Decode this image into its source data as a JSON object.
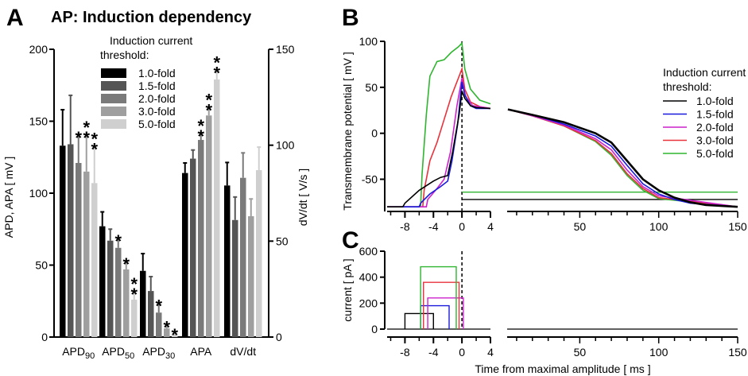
{
  "panels": {
    "a": {
      "letter": "A",
      "title": "AP: Induction dependency"
    },
    "b": {
      "letter": "B"
    },
    "c": {
      "letter": "C"
    }
  },
  "legend": {
    "title_a": "Induction current",
    "title_b": "threshold:",
    "entries": [
      "1.0-fold",
      "1.5-fold",
      "2.0-fold",
      "3.0-fold",
      "5.0-fold"
    ]
  },
  "colors": {
    "bar_series": [
      "#000000",
      "#555555",
      "#7a7a7a",
      "#9f9f9f",
      "#cfcfcf"
    ],
    "trace_series": [
      "#000000",
      "#1a1adc",
      "#cc22cc",
      "#e8323c",
      "#2fb52f"
    ]
  },
  "chart_data": [
    {
      "id": "A",
      "type": "bar",
      "title": "AP: Induction dependency",
      "categories": [
        "APD90",
        "APD50",
        "APD30",
        "APA",
        "dV/dt"
      ],
      "category_labels": [
        {
          "main": "APD",
          "sub": "90"
        },
        {
          "main": "APD",
          "sub": "50"
        },
        {
          "main": "APD",
          "sub": "30"
        },
        {
          "main": "APA",
          "sub": ""
        },
        {
          "main": "dV/dt",
          "sub": ""
        }
      ],
      "ylabel": "APD, APA [ mV ]",
      "ylim": [
        0,
        200
      ],
      "yticks": [
        0,
        50,
        100,
        150,
        200
      ],
      "y2label": "dV/dt [ V/s ]",
      "y2lim": [
        0,
        150
      ],
      "y2ticks": [
        0,
        50,
        100,
        150
      ],
      "series": [
        {
          "name": "1.0-fold",
          "values": [
            133,
            77,
            46,
            114,
            79
          ],
          "errors": [
            25,
            10,
            12,
            7,
            12
          ]
        },
        {
          "name": "1.5-fold",
          "values": [
            134,
            67,
            32,
            124,
            61
          ],
          "errors": [
            34,
            8,
            10,
            6,
            12
          ]
        },
        {
          "name": "2.0-fold",
          "values": [
            121,
            62,
            17,
            137,
            83
          ],
          "errors": [
            20,
            7,
            7,
            5,
            13
          ]
        },
        {
          "name": "3.0-fold",
          "values": [
            115,
            47,
            6,
            154,
            63
          ],
          "errors": [
            26,
            6,
            3,
            6,
            9
          ]
        },
        {
          "name": "5.0-fold",
          "values": [
            107,
            26,
            2,
            179,
            87
          ],
          "errors": [
            26,
            6,
            2,
            7,
            12
          ]
        }
      ],
      "significance": [
        {
          "category": 0,
          "series": 2,
          "mark": "*"
        },
        {
          "category": 0,
          "series": 3,
          "mark": "**"
        },
        {
          "category": 0,
          "series": 4,
          "mark": "**"
        },
        {
          "category": 1,
          "series": 2,
          "mark": "*"
        },
        {
          "category": 1,
          "series": 3,
          "mark": "*"
        },
        {
          "category": 1,
          "series": 4,
          "mark": "**"
        },
        {
          "category": 2,
          "series": 2,
          "mark": "*"
        },
        {
          "category": 2,
          "series": 3,
          "mark": "*"
        },
        {
          "category": 2,
          "series": 4,
          "mark": "*"
        },
        {
          "category": 3,
          "series": 2,
          "mark": "**"
        },
        {
          "category": 3,
          "series": 3,
          "mark": "**"
        },
        {
          "category": 3,
          "series": 4,
          "mark": "**"
        }
      ]
    },
    {
      "id": "B",
      "type": "line",
      "ylabel": "Transmembrane potential [ mV ]",
      "ylim": [
        -85,
        100
      ],
      "yticks": [
        -50,
        0,
        50,
        100
      ],
      "x_segments": [
        [
          -10,
          4
        ],
        [
          4,
          150
        ]
      ],
      "xticks_left": [
        -8,
        -4,
        0,
        4
      ],
      "xticks_right": [
        50,
        100,
        150
      ],
      "series": [
        {
          "name": "1.0-fold",
          "points": [
            [
              -10.5,
              -80
            ],
            [
              -8.3,
              -80
            ],
            [
              -8,
              -76
            ],
            [
              -6,
              -62
            ],
            [
              -4,
              -52
            ],
            [
              -3,
              -48
            ],
            [
              -2,
              -46
            ],
            [
              -1.3,
              -20
            ],
            [
              -0.4,
              20
            ],
            [
              0,
              46
            ],
            [
              0.4,
              38
            ],
            [
              1.2,
              30
            ],
            [
              2,
              28
            ],
            [
              4,
              27
            ],
            [
              4.5,
              26
            ],
            [
              20,
              20
            ],
            [
              40,
              12
            ],
            [
              60,
              0
            ],
            [
              70,
              -10
            ],
            [
              80,
              -30
            ],
            [
              90,
              -50
            ],
            [
              100,
              -62
            ],
            [
              110,
              -70
            ],
            [
              120,
              -75
            ],
            [
              130,
              -78
            ],
            [
              150,
              -80
            ]
          ],
          "baseline": -72
        },
        {
          "name": "1.5-fold",
          "points": [
            [
              -10.5,
              -80
            ],
            [
              -6,
              -80
            ],
            [
              -5.8,
              -76
            ],
            [
              -4.5,
              -66
            ],
            [
              -3,
              -58
            ],
            [
              -2,
              -52
            ],
            [
              -1.4,
              -30
            ],
            [
              -0.6,
              10
            ],
            [
              0,
              56
            ],
            [
              0.4,
              42
            ],
            [
              1.2,
              30
            ],
            [
              2,
              27
            ],
            [
              4,
              27
            ],
            [
              4.5,
              26
            ],
            [
              20,
              20
            ],
            [
              40,
              10
            ],
            [
              60,
              -3
            ],
            [
              70,
              -14
            ],
            [
              80,
              -35
            ],
            [
              90,
              -55
            ],
            [
              100,
              -66
            ],
            [
              110,
              -72
            ],
            [
              120,
              -76
            ],
            [
              150,
              -80
            ]
          ]
        },
        {
          "name": "2.0-fold",
          "points": [
            [
              -10.5,
              -80
            ],
            [
              -5,
              -80
            ],
            [
              -4.8,
              -72
            ],
            [
              -3.5,
              -60
            ],
            [
              -2.5,
              -50
            ],
            [
              -1.6,
              -20
            ],
            [
              -0.7,
              30
            ],
            [
              0,
              60
            ],
            [
              0.5,
              40
            ],
            [
              1.5,
              30
            ],
            [
              4,
              27
            ],
            [
              4.5,
              26
            ],
            [
              20,
              19
            ],
            [
              40,
              9
            ],
            [
              60,
              -6
            ],
            [
              70,
              -18
            ],
            [
              80,
              -40
            ],
            [
              90,
              -58
            ],
            [
              100,
              -68
            ],
            [
              150,
              -80
            ]
          ]
        },
        {
          "name": "3.0-fold",
          "points": [
            [
              -10.5,
              -80
            ],
            [
              -5.5,
              -80
            ],
            [
              -5.3,
              -62
            ],
            [
              -4.5,
              -30
            ],
            [
              -3.5,
              -10
            ],
            [
              -2.5,
              15
            ],
            [
              -1.5,
              40
            ],
            [
              -0.5,
              60
            ],
            [
              0,
              70
            ],
            [
              0.4,
              48
            ],
            [
              1.2,
              34
            ],
            [
              2.5,
              29
            ],
            [
              4,
              27
            ],
            [
              4.5,
              26
            ],
            [
              20,
              19
            ],
            [
              40,
              8
            ],
            [
              60,
              -8
            ],
            [
              70,
              -22
            ],
            [
              80,
              -44
            ],
            [
              90,
              -60
            ],
            [
              100,
              -70
            ],
            [
              150,
              -80
            ]
          ]
        },
        {
          "name": "5.0-fold",
          "points": [
            [
              -10.5,
              -80
            ],
            [
              -5.8,
              -80
            ],
            [
              -5.6,
              -45
            ],
            [
              -5,
              20
            ],
            [
              -4.5,
              62
            ],
            [
              -3.5,
              78
            ],
            [
              -2.5,
              80
            ],
            [
              -1.5,
              88
            ],
            [
              -0.5,
              94
            ],
            [
              0,
              98
            ],
            [
              0.4,
              70
            ],
            [
              1.2,
              48
            ],
            [
              2.5,
              36
            ],
            [
              4,
              32
            ],
            [
              4.5,
              26
            ],
            [
              20,
              19
            ],
            [
              40,
              8
            ],
            [
              60,
              -9
            ],
            [
              70,
              -24
            ],
            [
              80,
              -46
            ],
            [
              90,
              -62
            ],
            [
              100,
              -71
            ],
            [
              150,
              -80
            ]
          ],
          "baseline": -64
        }
      ],
      "legend_title": "Induction current threshold:"
    },
    {
      "id": "C",
      "type": "line",
      "ylabel": "current [ pA ]",
      "xlabel": "Time from maximal amplitude [ ms ]",
      "ylim": [
        0,
        600
      ],
      "yticks": [
        0,
        200,
        400,
        600
      ],
      "xticks_left": [
        -8,
        -4,
        0,
        4
      ],
      "xticks_right": [
        50,
        100,
        150
      ],
      "series": [
        {
          "name": "1.0-fold",
          "pulse_start": -8.0,
          "pulse_end": -4.0,
          "amplitude": 120
        },
        {
          "name": "1.5-fold",
          "pulse_start": -5.8,
          "pulse_end": -1.8,
          "amplitude": 180
        },
        {
          "name": "2.0-fold",
          "pulse_start": -4.8,
          "pulse_end": 0.2,
          "amplitude": 240
        },
        {
          "name": "3.0-fold",
          "pulse_start": -5.4,
          "pulse_end": -0.4,
          "amplitude": 360
        },
        {
          "name": "5.0-fold",
          "pulse_start": -5.8,
          "pulse_end": -0.8,
          "amplitude": 480
        }
      ]
    }
  ]
}
